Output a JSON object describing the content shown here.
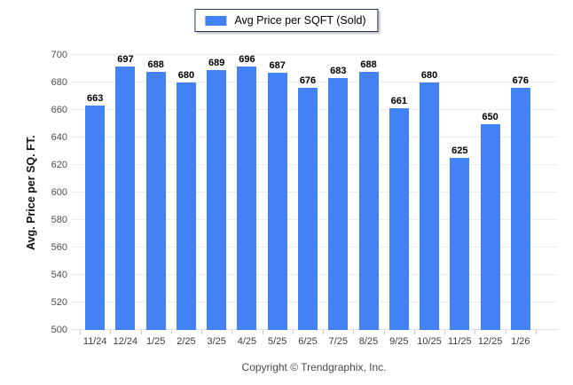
{
  "legend": {
    "label": "Avg Price per SQFT (Sold)"
  },
  "footer": {
    "text": "Copyright © Trendgraphix, Inc."
  },
  "theme": {
    "bar_color": "#4282f4",
    "legend_border_color": "#24375c",
    "gridline_color": "#ececec",
    "tick_color": "#c9ced6",
    "value_label_color": "#000000",
    "axis_label_color": "#4d4d4d",
    "background": "#ffffff"
  },
  "chart_data": {
    "type": "bar",
    "title": "",
    "xlabel": "",
    "ylabel": "Avg. Price per SQ. FT.",
    "categories": [
      "11/24",
      "12/24",
      "1/25",
      "2/25",
      "3/25",
      "4/25",
      "5/25",
      "6/25",
      "7/25",
      "8/25",
      "9/25",
      "10/25",
      "11/25",
      "12/25",
      "1/26"
    ],
    "series": [
      {
        "name": "Avg Price per SQFT (Sold)",
        "values": [
          663,
          697,
          688,
          680,
          689,
          696,
          687,
          676,
          683,
          688,
          661,
          680,
          625,
          650,
          676
        ]
      }
    ],
    "ylim": [
      500,
      700
    ],
    "ytick_step": 20,
    "yticks": [
      500,
      520,
      540,
      560,
      580,
      600,
      620,
      640,
      660,
      680,
      700
    ],
    "grid": true,
    "value_labels": true,
    "legend_position": "top"
  }
}
